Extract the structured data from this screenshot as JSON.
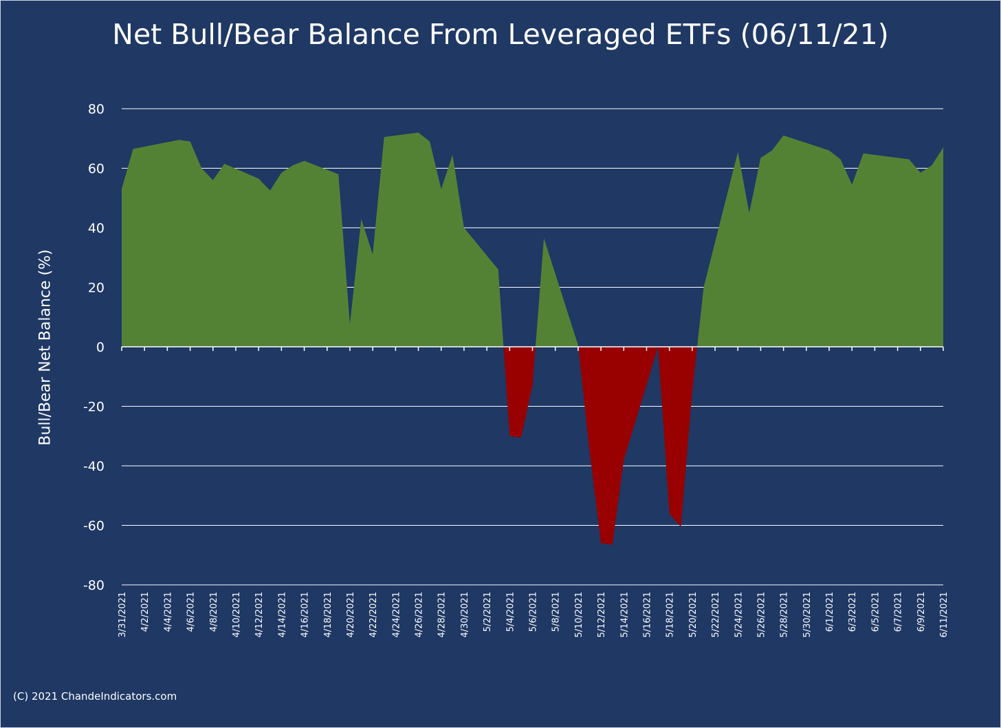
{
  "title": "Net Bull/Bear Balance From Leveraged ETFs (06/11/21)",
  "copyright": "(C) 2021 ChandeIndicators.com",
  "colors": {
    "background": "#1f3864",
    "positive": "#548235",
    "negative": "#990000",
    "grid": "#ffffff",
    "text": "#ffffff"
  },
  "chart_data": {
    "type": "area",
    "title": "Net Bull/Bear Balance From Leveraged ETFs (06/11/21)",
    "xlabel": "",
    "ylabel": "Bull/Bear Net Balance (%)",
    "ylim": [
      -80,
      80
    ],
    "yticks": [
      80,
      60,
      40,
      20,
      0,
      -20,
      -40,
      -60,
      -80
    ],
    "grid": true,
    "xtick_labels": [
      "3/31/2021",
      "4/2/2021",
      "4/4/2021",
      "4/6/2021",
      "4/8/2021",
      "4/10/2021",
      "4/12/2021",
      "4/14/2021",
      "4/16/2021",
      "4/18/2021",
      "4/20/2021",
      "4/22/2021",
      "4/24/2021",
      "4/26/2021",
      "4/28/2021",
      "4/30/2021",
      "5/2/2021",
      "5/4/2021",
      "5/6/2021",
      "5/8/2021",
      "5/10/2021",
      "5/12/2021",
      "5/14/2021",
      "5/16/2021",
      "5/18/2021",
      "5/20/2021",
      "5/22/2021",
      "5/24/2021",
      "5/26/2021",
      "5/28/2021",
      "5/30/2021",
      "6/1/2021",
      "6/3/2021",
      "6/5/2021",
      "6/7/2021",
      "6/9/2021",
      "6/11/2021"
    ],
    "x": [
      "3/31/2021",
      "4/1/2021",
      "4/5/2021",
      "4/6/2021",
      "4/7/2021",
      "4/8/2021",
      "4/9/2021",
      "4/12/2021",
      "4/13/2021",
      "4/14/2021",
      "4/15/2021",
      "4/16/2021",
      "4/19/2021",
      "4/20/2021",
      "4/21/2021",
      "4/22/2021",
      "4/23/2021",
      "4/26/2021",
      "4/27/2021",
      "4/28/2021",
      "4/29/2021",
      "4/30/2021",
      "5/3/2021",
      "5/4/2021",
      "5/5/2021",
      "5/6/2021",
      "5/7/2021",
      "5/10/2021",
      "5/11/2021",
      "5/12/2021",
      "5/13/2021",
      "5/14/2021",
      "5/17/2021",
      "5/18/2021",
      "5/19/2021",
      "5/20/2021",
      "5/21/2021",
      "5/24/2021",
      "5/25/2021",
      "5/26/2021",
      "5/27/2021",
      "5/28/2021",
      "6/1/2021",
      "6/2/2021",
      "6/3/2021",
      "6/4/2021",
      "6/7/2021",
      "6/8/2021",
      "6/9/2021",
      "6/10/2021",
      "6/11/2021"
    ],
    "values": [
      53,
      66.5,
      69.5,
      69,
      60,
      56,
      61.5,
      56.5,
      52.5,
      58.5,
      61,
      62.5,
      58,
      7.5,
      43,
      31,
      70.5,
      72,
      69,
      53,
      64.5,
      40,
      26,
      -30,
      -30.5,
      -13,
      36.5,
      0.5,
      -35,
      -66,
      -66.5,
      -38,
      0,
      -56,
      -60.5,
      -15,
      20,
      65.5,
      45,
      63.5,
      66,
      71,
      66,
      63,
      54.5,
      65,
      63.5,
      63,
      58.5,
      61,
      67
    ]
  }
}
